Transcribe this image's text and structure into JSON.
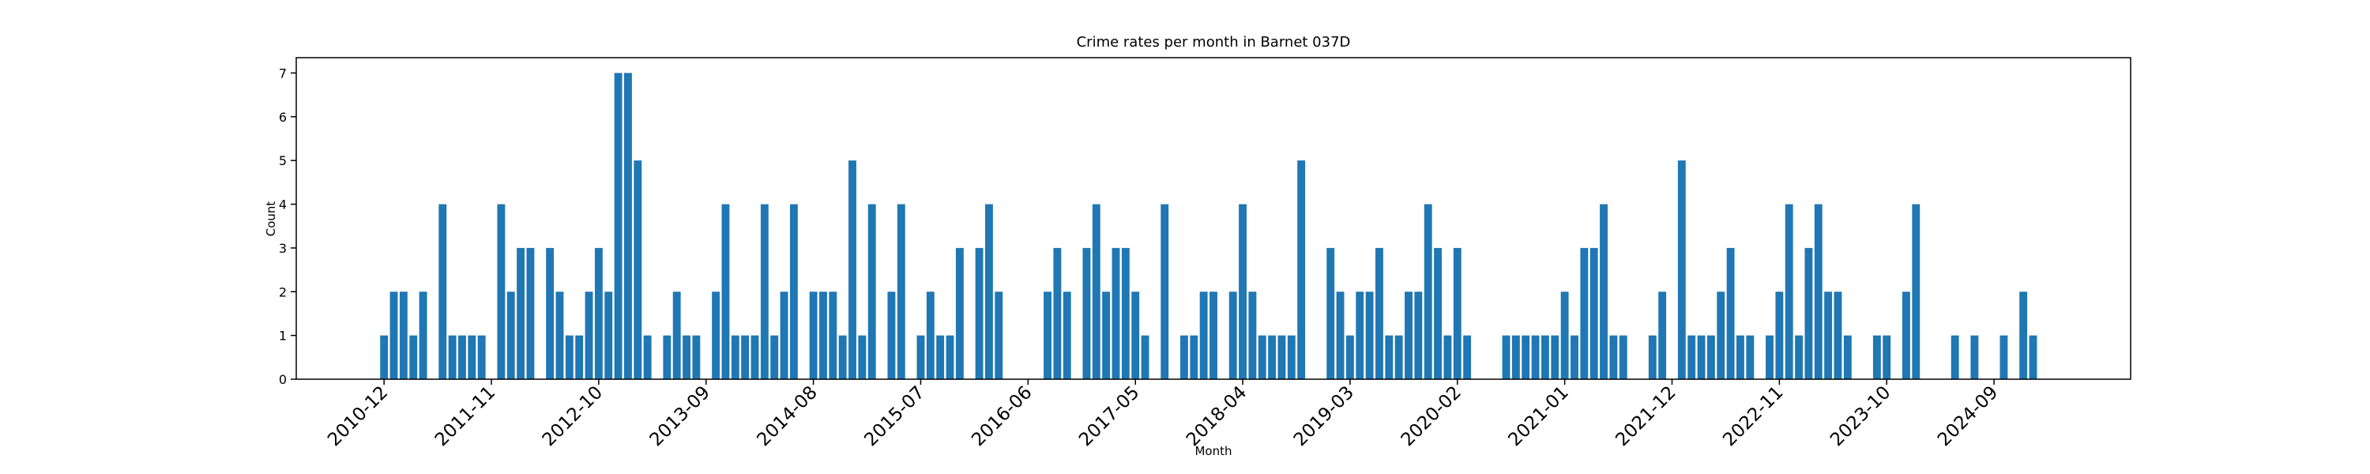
{
  "chart_data": {
    "type": "bar",
    "title": "Crime rates per month in Barnet 037D",
    "xlabel": "Month",
    "ylabel": "Count",
    "color": "#1f77b4",
    "x": [
      "2010-12",
      "2011-01",
      "2011-02",
      "2011-03",
      "2011-04",
      "2011-06",
      "2011-07",
      "2011-08",
      "2011-09",
      "2011-10",
      "2011-12",
      "2012-01",
      "2012-02",
      "2012-03",
      "2012-05",
      "2012-06",
      "2012-07",
      "2012-08",
      "2012-09",
      "2012-10",
      "2012-11",
      "2012-12",
      "2013-01",
      "2013-02",
      "2013-03",
      "2013-05",
      "2013-06",
      "2013-07",
      "2013-08",
      "2013-10",
      "2013-11",
      "2013-12",
      "2014-01",
      "2014-02",
      "2014-03",
      "2014-04",
      "2014-05",
      "2014-06",
      "2014-08",
      "2014-09",
      "2014-10",
      "2014-11",
      "2014-12",
      "2015-01",
      "2015-02",
      "2015-04",
      "2015-05",
      "2015-07",
      "2015-08",
      "2015-09",
      "2015-10",
      "2015-11",
      "2016-01",
      "2016-02",
      "2016-03",
      "2016-08",
      "2016-09",
      "2016-10",
      "2016-12",
      "2017-01",
      "2017-02",
      "2017-03",
      "2017-04",
      "2017-05",
      "2017-06",
      "2017-08",
      "2017-10",
      "2017-11",
      "2017-12",
      "2018-01",
      "2018-03",
      "2018-04",
      "2018-05",
      "2018-06",
      "2018-07",
      "2018-08",
      "2018-09",
      "2018-10",
      "2019-01",
      "2019-02",
      "2019-03",
      "2019-04",
      "2019-05",
      "2019-06",
      "2019-07",
      "2019-08",
      "2019-09",
      "2019-10",
      "2019-11",
      "2019-12",
      "2020-01",
      "2020-02",
      "2020-03",
      "2020-07",
      "2020-08",
      "2020-09",
      "2020-10",
      "2020-11",
      "2020-12",
      "2021-01",
      "2021-02",
      "2021-03",
      "2021-04",
      "2021-05",
      "2021-06",
      "2021-07",
      "2021-10",
      "2021-11",
      "2022-01",
      "2022-02",
      "2022-03",
      "2022-04",
      "2022-05",
      "2022-06",
      "2022-07",
      "2022-08",
      "2022-10",
      "2022-11",
      "2022-12",
      "2023-01",
      "2023-02",
      "2023-03",
      "2023-04",
      "2023-05",
      "2023-06",
      "2023-09",
      "2023-10",
      "2023-12",
      "2024-01",
      "2024-05",
      "2024-07",
      "2024-10",
      "2024-12",
      "2025-01"
    ],
    "values": [
      1,
      2,
      2,
      1,
      2,
      4,
      1,
      1,
      1,
      1,
      4,
      2,
      3,
      3,
      3,
      2,
      1,
      1,
      2,
      3,
      2,
      7,
      7,
      5,
      1,
      1,
      2,
      1,
      1,
      2,
      4,
      1,
      1,
      1,
      4,
      1,
      2,
      4,
      2,
      2,
      2,
      1,
      5,
      1,
      4,
      2,
      4,
      1,
      2,
      1,
      1,
      3,
      3,
      4,
      2,
      2,
      3,
      2,
      3,
      4,
      2,
      3,
      3,
      2,
      1,
      4,
      1,
      1,
      2,
      2,
      2,
      4,
      2,
      1,
      1,
      1,
      1,
      5,
      3,
      2,
      1,
      2,
      2,
      3,
      1,
      1,
      2,
      2,
      4,
      3,
      1,
      3,
      1,
      1,
      1,
      1,
      1,
      1,
      1,
      2,
      1,
      3,
      3,
      4,
      1,
      1,
      1,
      2,
      5,
      1,
      1,
      1,
      2,
      3,
      1,
      1,
      1,
      2,
      4,
      1,
      3,
      4,
      2,
      2,
      1,
      1,
      1,
      2,
      4,
      1,
      1,
      1,
      2,
      1
    ],
    "xlim": [
      "2010-03",
      "2025-11"
    ],
    "xticks": [
      "2010-12",
      "2011-11",
      "2012-10",
      "2013-09",
      "2014-08",
      "2015-07",
      "2016-06",
      "2017-05",
      "2018-04",
      "2019-03",
      "2020-02",
      "2021-01",
      "2021-12",
      "2022-11",
      "2023-10",
      "2024-09"
    ],
    "ylim": [
      0,
      7.35
    ],
    "yticks": [
      0,
      1,
      2,
      3,
      4,
      5,
      6,
      7
    ]
  }
}
